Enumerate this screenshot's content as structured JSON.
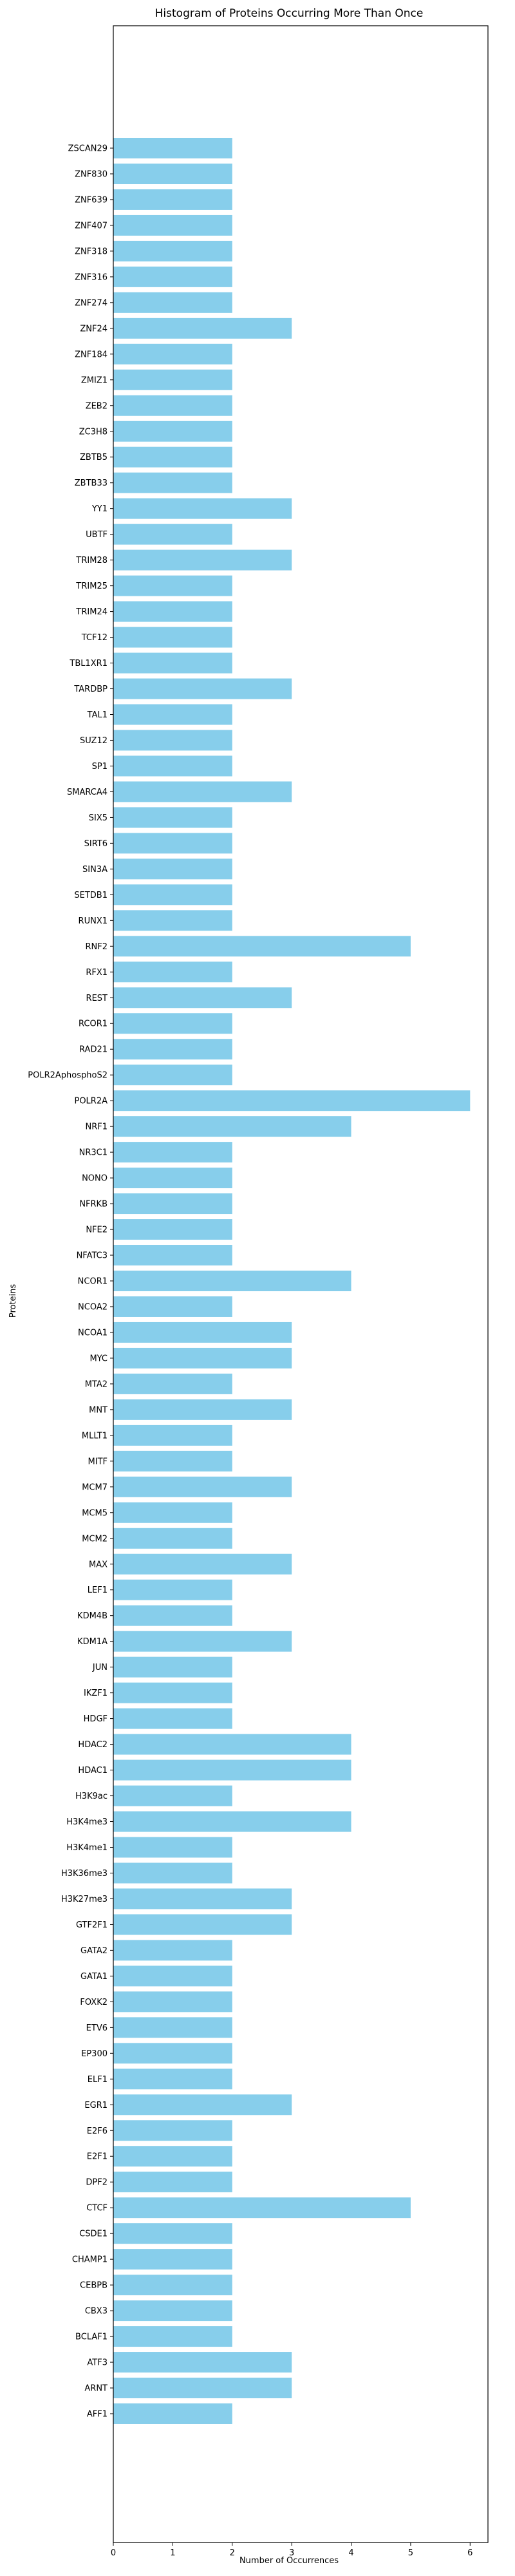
{
  "chart_data": {
    "type": "bar",
    "orientation": "horizontal",
    "title": "Histogram of Proteins Occurring More Than Once",
    "xlabel": "Number of Occurrences",
    "ylabel": "Proteins",
    "xlim": [
      0,
      6.3
    ],
    "xticks": [
      "0",
      "1",
      "2",
      "3",
      "4",
      "5",
      "6"
    ],
    "grid": false,
    "bar_color": "#87CEEB",
    "categories": [
      "ZSCAN29",
      "ZNF830",
      "ZNF639",
      "ZNF407",
      "ZNF318",
      "ZNF316",
      "ZNF274",
      "ZNF24",
      "ZNF184",
      "ZMIZ1",
      "ZEB2",
      "ZC3H8",
      "ZBTB5",
      "ZBTB33",
      "YY1",
      "UBTF",
      "TRIM28",
      "TRIM25",
      "TRIM24",
      "TCF12",
      "TBL1XR1",
      "TARDBP",
      "TAL1",
      "SUZ12",
      "SP1",
      "SMARCA4",
      "SIX5",
      "SIRT6",
      "SIN3A",
      "SETDB1",
      "RUNX1",
      "RNF2",
      "RFX1",
      "REST",
      "RCOR1",
      "RAD21",
      "POLR2AphosphoS2",
      "POLR2A",
      "NRF1",
      "NR3C1",
      "NONO",
      "NFRKB",
      "NFE2",
      "NFATC3",
      "NCOR1",
      "NCOA2",
      "NCOA1",
      "MYC",
      "MTA2",
      "MNT",
      "MLLT1",
      "MITF",
      "MCM7",
      "MCM5",
      "MCM2",
      "MAX",
      "LEF1",
      "KDM4B",
      "KDM1A",
      "JUN",
      "IKZF1",
      "HDGF",
      "HDAC2",
      "HDAC1",
      "H3K9ac",
      "H3K4me3",
      "H3K4me1",
      "H3K36me3",
      "H3K27me3",
      "GTF2F1",
      "GATA2",
      "GATA1",
      "FOXK2",
      "ETV6",
      "EP300",
      "ELF1",
      "EGR1",
      "E2F6",
      "E2F1",
      "DPF2",
      "CTCF",
      "CSDE1",
      "CHAMP1",
      "CEBPB",
      "CBX3",
      "BCLAF1",
      "ATF3",
      "ARNT",
      "AFF1"
    ],
    "values": [
      2,
      2,
      2,
      2,
      2,
      2,
      2,
      3,
      2,
      2,
      2,
      2,
      2,
      2,
      3,
      2,
      3,
      2,
      2,
      2,
      2,
      3,
      2,
      2,
      2,
      3,
      2,
      2,
      2,
      2,
      2,
      5,
      2,
      3,
      2,
      2,
      2,
      6,
      4,
      2,
      2,
      2,
      2,
      2,
      4,
      2,
      3,
      3,
      2,
      3,
      2,
      2,
      3,
      2,
      2,
      3,
      2,
      2,
      3,
      2,
      2,
      2,
      4,
      4,
      2,
      4,
      2,
      2,
      3,
      3,
      2,
      2,
      2,
      2,
      2,
      2,
      3,
      2,
      2,
      2,
      5,
      2,
      2,
      2,
      2,
      2,
      3,
      3,
      2
    ]
  }
}
